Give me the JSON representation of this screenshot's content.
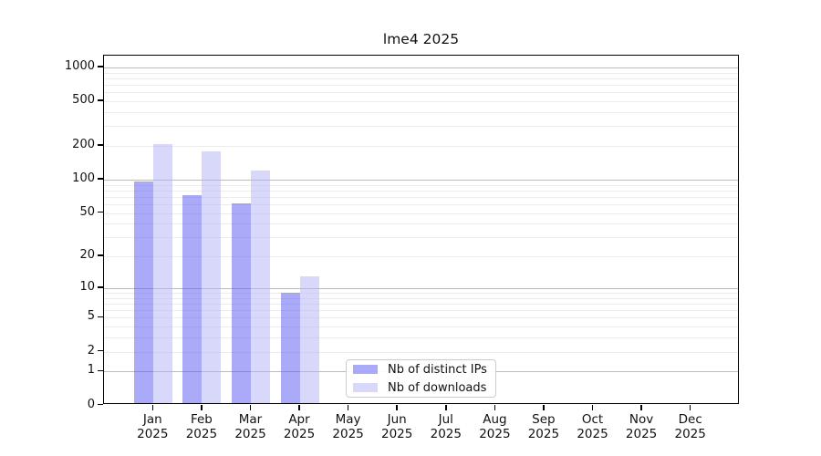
{
  "chart_data": {
    "type": "bar",
    "title": "lme4 2025",
    "categories": [
      "Jan",
      "Feb",
      "Mar",
      "Apr",
      "May",
      "Jun",
      "Jul",
      "Aug",
      "Sep",
      "Oct",
      "Nov",
      "Dec"
    ],
    "year_label": "2025",
    "series": [
      {
        "name": "Nb of distinct IPs",
        "color": "#5656f3",
        "fill_alpha": 0.5,
        "values": [
          97,
          72,
          61,
          9,
          0,
          0,
          0,
          0,
          0,
          0,
          0,
          0
        ]
      },
      {
        "name": "Nb of downloads",
        "color": "#b1b1f5",
        "fill_alpha": 0.5,
        "values": [
          207,
          178,
          121,
          13,
          0,
          0,
          0,
          0,
          0,
          0,
          0,
          0
        ]
      }
    ],
    "xlabel": "",
    "ylabel": "",
    "y_scale": "log10(1+x)",
    "y_ticks": [
      0,
      1,
      2,
      5,
      10,
      20,
      50,
      100,
      200,
      500,
      1000
    ],
    "y_major_gridlines": [
      1,
      10,
      100,
      1000
    ],
    "ylim": [
      0,
      1300
    ],
    "grid": "horizontal on",
    "legend_position": "lower center inside plot",
    "colors": {
      "major_grid": "#bcbcbc",
      "minor_grid": "#ececec",
      "axis": "#000000",
      "text": "#111111"
    }
  }
}
